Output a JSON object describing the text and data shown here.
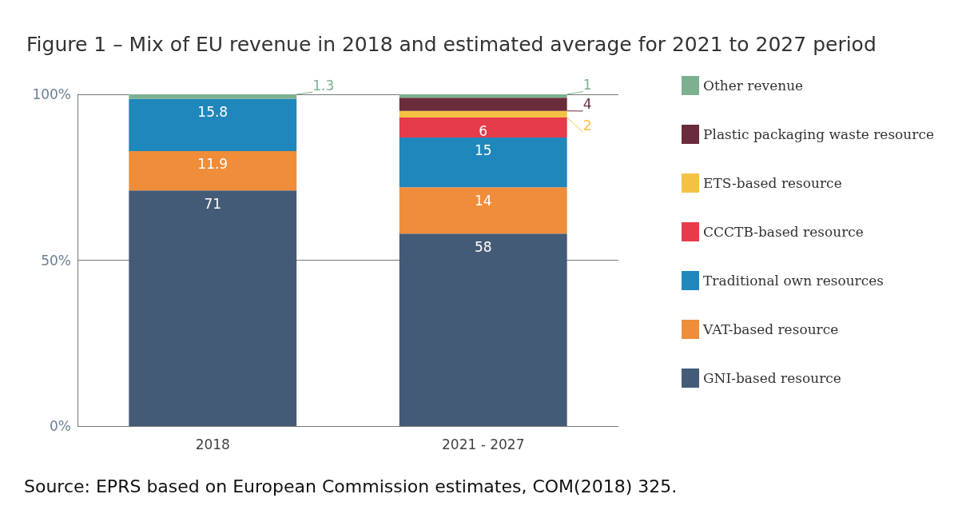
{
  "chart_data": {
    "type": "bar",
    "title": "Figure 1 – Mix of EU revenue in 2018 and estimated average for 2021 to 2027 period",
    "categories": [
      "2018",
      "2021 - 2027"
    ],
    "stacked": true,
    "series": [
      {
        "name": "GNI-based resource",
        "color": "#435b76",
        "values": [
          71,
          58
        ]
      },
      {
        "name": "VAT-based resource",
        "color": "#ef8d3a",
        "values": [
          11.9,
          14
        ]
      },
      {
        "name": "Traditional own resources",
        "color": "#1f87bb",
        "values": [
          15.8,
          15
        ]
      },
      {
        "name": "CCCTB-based resource",
        "color": "#e63b4b",
        "values": [
          null,
          6
        ]
      },
      {
        "name": "ETS-based resource",
        "color": "#f5c145",
        "values": [
          null,
          2
        ]
      },
      {
        "name": "Plastic packaging waste resource",
        "color": "#6a2b3b",
        "values": [
          null,
          4
        ]
      },
      {
        "name": "Other revenue",
        "color": "#7db08f",
        "values": [
          1.3,
          1
        ]
      }
    ],
    "ylim": [
      0,
      100
    ],
    "yticks": [
      {
        "value": 0,
        "label": "0%"
      },
      {
        "value": 50,
        "label": "50%"
      },
      {
        "value": 100,
        "label": "100%"
      }
    ],
    "grid": "y",
    "legend": "right",
    "data_labels": true,
    "annotations": [
      "Source: EPRS based on European Commission estimates, COM(2018) 325."
    ]
  }
}
